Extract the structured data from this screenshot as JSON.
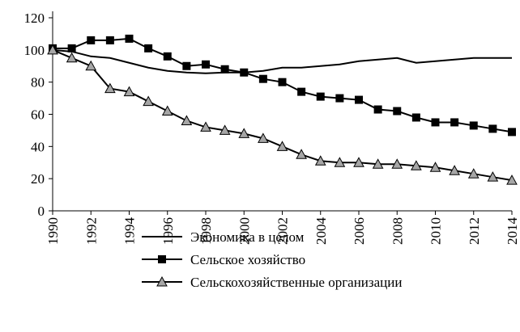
{
  "chart_data": {
    "type": "line",
    "x": [
      1990,
      1991,
      1992,
      1993,
      1994,
      1995,
      1996,
      1997,
      1998,
      1999,
      2000,
      2001,
      2002,
      2003,
      2004,
      2005,
      2006,
      2007,
      2008,
      2009,
      2010,
      2011,
      2012,
      2013,
      2014
    ],
    "series": [
      {
        "name": "Экономика в целом",
        "color": "#000000",
        "marker": "none",
        "values": [
          100,
          99,
          96,
          95,
          92,
          89,
          87,
          86,
          85.5,
          86,
          86,
          87,
          89,
          89,
          90,
          91,
          93,
          94,
          95,
          92,
          93,
          94,
          95,
          95,
          95
        ]
      },
      {
        "name": "Сельское хозяйство",
        "color": "#000000",
        "marker": "square",
        "values": [
          101,
          101,
          106,
          106,
          107,
          101,
          96,
          90,
          91,
          88,
          86,
          82,
          80,
          74,
          71,
          70,
          69,
          63,
          62,
          58,
          55,
          55,
          53,
          51,
          49
        ]
      },
      {
        "name": "Сельскохозяйственные организации",
        "color": "#000000",
        "marker": "triangle",
        "marker_fill": "#a6a6a6",
        "values": [
          100,
          95,
          90,
          76,
          74,
          68,
          62,
          56,
          52,
          50,
          48,
          45,
          40,
          35,
          31,
          30,
          30,
          29,
          29,
          28,
          27,
          25,
          23,
          21,
          19
        ]
      }
    ],
    "xlim": [
      1990,
      2014
    ],
    "xticks": [
      1990,
      1992,
      1994,
      1996,
      1998,
      2000,
      2002,
      2004,
      2006,
      2008,
      2010,
      2012,
      2014
    ],
    "ylim": [
      0,
      120
    ],
    "yticks": [
      0,
      20,
      40,
      60,
      80,
      100,
      120
    ],
    "grid": false,
    "legend": "bottom"
  }
}
